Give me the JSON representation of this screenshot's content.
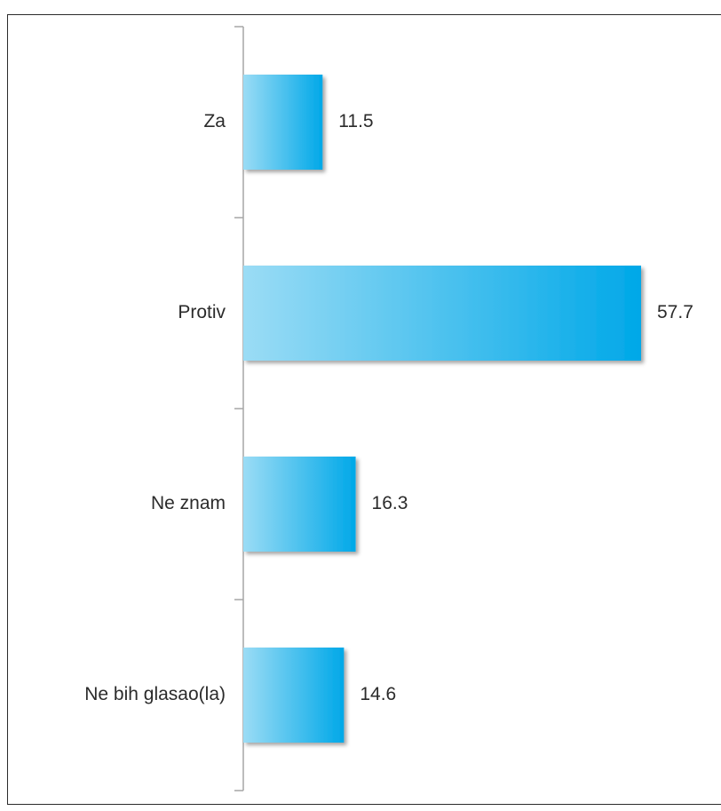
{
  "colors": {
    "bar_light": "#9bdcf5",
    "bar_dark": "#00a8e8",
    "axis": "#a6a6a6",
    "text": "#2b2b2b"
  },
  "chart_data": {
    "type": "bar",
    "orientation": "horizontal",
    "categories": [
      "Za",
      "Protiv",
      "Ne znam",
      "Ne bih glasao(la)"
    ],
    "values": [
      11.5,
      57.7,
      16.3,
      14.6
    ],
    "xlim": [
      0,
      60
    ],
    "grid": false,
    "legend": "none",
    "data_labels": [
      "11.5",
      "57.7",
      "16.3",
      "14.6"
    ]
  }
}
